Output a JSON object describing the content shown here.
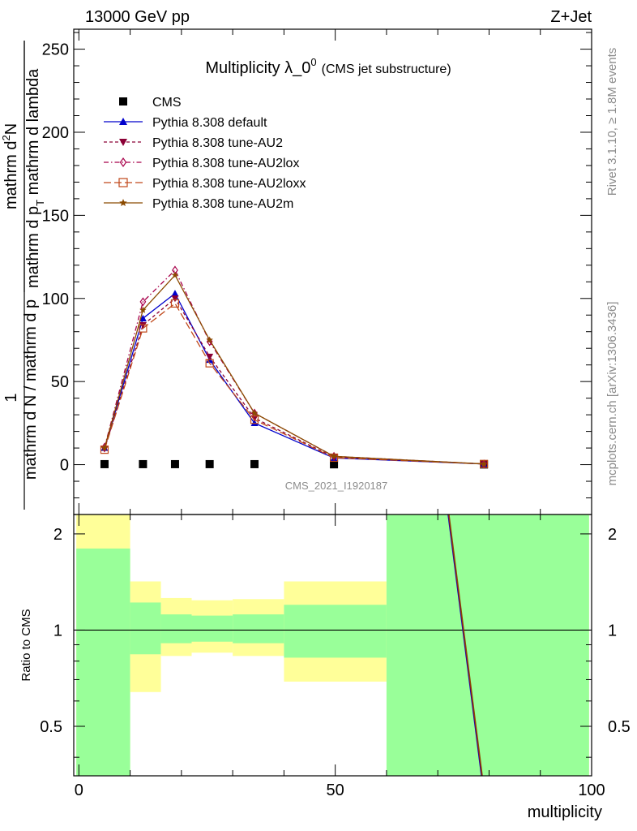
{
  "header": {
    "left": "13000 GeV pp",
    "right": "Z+Jet"
  },
  "side_labels": {
    "rivet": "Rivet 3.1.10, ≥ 1.8M events",
    "mcplots": "mcplots.cern.ch [arXiv:1306.3436]"
  },
  "colors": {
    "data": "#000000",
    "default": "#0000cc",
    "au2": "#8b0036",
    "au2lox": "#a8004a",
    "au2loxx": "#c0481a",
    "au2m": "#8b4a00",
    "band_inner": "#99ff99",
    "band_outer": "#ffff99"
  },
  "chart_data": [
    {
      "type": "line",
      "title": "Multiplicity λ_0",
      "title_sup": "0",
      "subtitle": "(CMS jet substructure)",
      "watermark": "CMS_2021_I1920187",
      "ylabel_parts": {
        "left": "1",
        "left_den": "mathrm d N / mathrm d p",
        "right_num": "mathrm d",
        "right_sup": "2",
        "right_num2": "N",
        "right_den": "mathrm d p",
        "right_den_sub": "T",
        "right_den2": " mathrm d lambda"
      },
      "xlim": [
        -1,
        100
      ],
      "ylim": [
        -30,
        262
      ],
      "yticks": [
        0,
        50,
        100,
        150,
        200,
        250
      ],
      "xticks": [
        0,
        50,
        100
      ],
      "x": [
        5,
        12.5,
        18.75,
        25.5,
        34.25,
        49.75,
        79
      ],
      "series": [
        {
          "key": "data",
          "name": "CMS",
          "marker": "square",
          "line": "none",
          "values": [
            0.3,
            0.3,
            0.3,
            0.3,
            0.3,
            0.2,
            0.1
          ]
        },
        {
          "key": "default",
          "name": "Pythia 8.308 default",
          "marker": "triangle-up",
          "line": "solid",
          "values": [
            10,
            88,
            103,
            63,
            25,
            4,
            0.4
          ]
        },
        {
          "key": "au2",
          "name": "Pythia 8.308 tune-AU2",
          "marker": "triangle-down",
          "line": "dashed",
          "values": [
            9.5,
            84,
            100,
            65,
            28,
            4.5,
            0.4
          ]
        },
        {
          "key": "au2lox",
          "name": "Pythia 8.308 tune-AU2lox",
          "marker": "diamond",
          "line": "dashdot",
          "values": [
            10.5,
            98,
            117,
            74,
            31,
            5,
            0.4
          ]
        },
        {
          "key": "au2loxx",
          "name": "Pythia 8.308 tune-AU2loxx",
          "marker": "open-square",
          "line": "longdash",
          "values": [
            9,
            82,
            97,
            61,
            27,
            4.2,
            0.4
          ]
        },
        {
          "key": "au2m",
          "name": "Pythia 8.308 tune-AU2m",
          "marker": "star",
          "line": "solid",
          "values": [
            10,
            93,
            114,
            75,
            31,
            5,
            0.4
          ]
        }
      ],
      "legend_placement": "top-left"
    },
    {
      "type": "area",
      "ylabel": "Ratio to CMS",
      "xlabel": "multiplicity",
      "xlim": [
        -1,
        100
      ],
      "ylim": [
        0.35,
        2.3
      ],
      "scale": "log",
      "yticks": [
        0.5,
        1,
        2
      ],
      "xticks": [
        0,
        50,
        100
      ],
      "bins": [
        {
          "x0": -0.5,
          "x1": 10,
          "inner": [
            0.35,
            1.8
          ],
          "outer": [
            0.35,
            2.3
          ]
        },
        {
          "x0": 10,
          "x1": 16,
          "inner": [
            0.84,
            1.22
          ],
          "outer": [
            0.64,
            1.42
          ]
        },
        {
          "x0": 16,
          "x1": 22,
          "inner": [
            0.91,
            1.12
          ],
          "outer": [
            0.83,
            1.26
          ]
        },
        {
          "x0": 22,
          "x1": 30,
          "inner": [
            0.92,
            1.11
          ],
          "outer": [
            0.85,
            1.24
          ]
        },
        {
          "x0": 30,
          "x1": 40,
          "inner": [
            0.91,
            1.12
          ],
          "outer": [
            0.83,
            1.25
          ]
        },
        {
          "x0": 40,
          "x1": 60,
          "inner": [
            0.82,
            1.2
          ],
          "outer": [
            0.69,
            1.42
          ]
        },
        {
          "x0": 60,
          "x1": 99.5,
          "inner": [
            0.35,
            2.3
          ],
          "outer": [
            0.35,
            2.3
          ]
        }
      ],
      "ratio_line": {
        "x": [
          72,
          78.5
        ],
        "y": [
          2.3,
          0.35
        ]
      }
    }
  ]
}
